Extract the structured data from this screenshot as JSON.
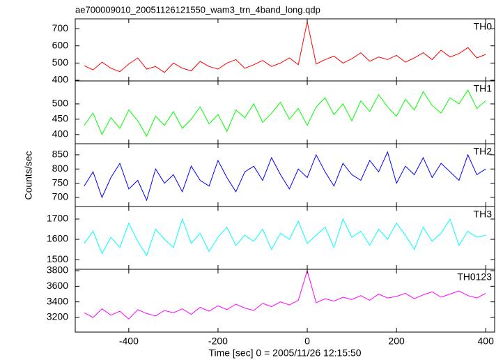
{
  "chart_data": [
    {
      "type": "line",
      "title": "ae700009010_20051126121550_wam3_trn_4band_long.qdp",
      "x": [
        -500,
        -480,
        -460,
        -440,
        -420,
        -400,
        -380,
        -360,
        -340,
        -320,
        -300,
        -280,
        -260,
        -240,
        -220,
        -200,
        -180,
        -160,
        -140,
        -120,
        -100,
        -80,
        -60,
        -40,
        -20,
        0,
        20,
        40,
        60,
        80,
        100,
        120,
        140,
        160,
        180,
        200,
        220,
        240,
        260,
        280,
        300,
        320,
        340,
        360,
        380,
        400
      ],
      "series": [
        {
          "name": "TH0",
          "color": "#ff0000",
          "values": [
            485,
            460,
            505,
            470,
            450,
            495,
            530,
            465,
            480,
            445,
            500,
            470,
            455,
            510,
            480,
            465,
            500,
            520,
            470,
            490,
            515,
            480,
            500,
            530,
            490,
            740,
            495,
            520,
            540,
            500,
            525,
            560,
            510,
            535,
            520,
            545,
            505,
            530,
            560,
            520,
            575,
            535,
            555,
            590,
            530,
            550
          ]
        }
      ],
      "xlim": [
        -520,
        420
      ],
      "ylim": [
        396,
        757
      ],
      "yticks": [
        400,
        500,
        600,
        700
      ]
    },
    {
      "type": "line",
      "x": [
        -500,
        -480,
        -460,
        -440,
        -420,
        -400,
        -380,
        -360,
        -340,
        -320,
        -300,
        -280,
        -260,
        -240,
        -220,
        -200,
        -180,
        -160,
        -140,
        -120,
        -100,
        -80,
        -60,
        -40,
        -20,
        0,
        20,
        40,
        60,
        80,
        100,
        120,
        140,
        160,
        180,
        200,
        220,
        240,
        260,
        280,
        300,
        320,
        340,
        360,
        380,
        400
      ],
      "series": [
        {
          "name": "TH1",
          "color": "#00ff00",
          "values": [
            430,
            470,
            400,
            455,
            420,
            480,
            445,
            395,
            460,
            430,
            475,
            420,
            450,
            490,
            435,
            465,
            410,
            480,
            455,
            500,
            440,
            470,
            505,
            450,
            485,
            430,
            490,
            520,
            465,
            500,
            445,
            510,
            475,
            530,
            490,
            460,
            515,
            480,
            540,
            495,
            470,
            520,
            500,
            545,
            485,
            510
          ]
        }
      ],
      "xlim": [
        -520,
        420
      ],
      "ylim": [
        370,
        575
      ],
      "yticks": [
        400,
        450,
        500
      ]
    },
    {
      "type": "line",
      "ylabel": "Counts/sec",
      "x": [
        -500,
        -480,
        -460,
        -440,
        -420,
        -400,
        -380,
        -360,
        -340,
        -320,
        -300,
        -280,
        -260,
        -240,
        -220,
        -200,
        -180,
        -160,
        -140,
        -120,
        -100,
        -80,
        -60,
        -40,
        -20,
        0,
        20,
        40,
        60,
        80,
        100,
        120,
        140,
        160,
        180,
        200,
        220,
        240,
        260,
        280,
        300,
        320,
        340,
        360,
        380,
        400
      ],
      "series": [
        {
          "name": "TH2",
          "color": "#0000ff",
          "values": [
            740,
            790,
            700,
            770,
            820,
            730,
            760,
            690,
            800,
            750,
            780,
            720,
            810,
            760,
            740,
            830,
            770,
            720,
            790,
            810,
            760,
            840,
            780,
            730,
            800,
            770,
            850,
            790,
            740,
            820,
            780,
            760,
            830,
            790,
            860,
            750,
            810,
            780,
            840,
            770,
            820,
            790,
            760,
            850,
            780,
            800
          ]
        }
      ],
      "xlim": [
        -520,
        420
      ],
      "ylim": [
        668,
        889
      ],
      "yticks": [
        700,
        750,
        800,
        850
      ]
    },
    {
      "type": "line",
      "x": [
        -500,
        -480,
        -460,
        -440,
        -420,
        -400,
        -380,
        -360,
        -340,
        -320,
        -300,
        -280,
        -260,
        -240,
        -220,
        -200,
        -180,
        -160,
        -140,
        -120,
        -100,
        -80,
        -60,
        -40,
        -20,
        0,
        20,
        40,
        60,
        80,
        100,
        120,
        140,
        160,
        180,
        200,
        220,
        240,
        260,
        280,
        300,
        320,
        340,
        360,
        380,
        400
      ],
      "series": [
        {
          "name": "TH3",
          "color": "#00ffff",
          "values": [
            1580,
            1640,
            1530,
            1610,
            1560,
            1680,
            1590,
            1520,
            1650,
            1600,
            1560,
            1700,
            1580,
            1630,
            1540,
            1610,
            1660,
            1570,
            1620,
            1590,
            1650,
            1550,
            1630,
            1600,
            1690,
            1580,
            1620,
            1660,
            1560,
            1700,
            1610,
            1640,
            1570,
            1650,
            1600,
            1680,
            1620,
            1550,
            1660,
            1590,
            1630,
            1700,
            1570,
            1640,
            1610,
            1620
          ]
        }
      ],
      "xlim": [
        -520,
        420
      ],
      "ylim": [
        1452,
        1762
      ],
      "yticks": [
        1500,
        1600,
        1700
      ]
    },
    {
      "type": "line",
      "xlabel": "Time [sec] 0 = 2005/11/26 12:15:50",
      "x": [
        -500,
        -480,
        -460,
        -440,
        -420,
        -400,
        -380,
        -360,
        -340,
        -320,
        -300,
        -280,
        -260,
        -240,
        -220,
        -200,
        -180,
        -160,
        -140,
        -120,
        -100,
        -80,
        -60,
        -40,
        -20,
        0,
        20,
        40,
        60,
        80,
        100,
        120,
        140,
        160,
        180,
        200,
        220,
        240,
        260,
        280,
        300,
        320,
        340,
        360,
        380,
        400
      ],
      "series": [
        {
          "name": "TH0123",
          "color": "#ff00ff",
          "values": [
            3260,
            3200,
            3310,
            3230,
            3280,
            3180,
            3300,
            3250,
            3220,
            3290,
            3260,
            3310,
            3240,
            3330,
            3280,
            3350,
            3300,
            3370,
            3320,
            3290,
            3380,
            3340,
            3400,
            3360,
            3420,
            3800,
            3390,
            3440,
            3410,
            3460,
            3430,
            3480,
            3420,
            3500,
            3450,
            3470,
            3510,
            3440,
            3490,
            3530,
            3460,
            3500,
            3540,
            3480,
            3450,
            3510
          ]
        }
      ],
      "xlim": [
        -520,
        420
      ],
      "ylim": [
        3012,
        3818
      ],
      "yticks": [
        3200,
        3400,
        3600,
        3800
      ],
      "xticks": [
        -400,
        -200,
        0,
        200,
        400
      ]
    }
  ]
}
